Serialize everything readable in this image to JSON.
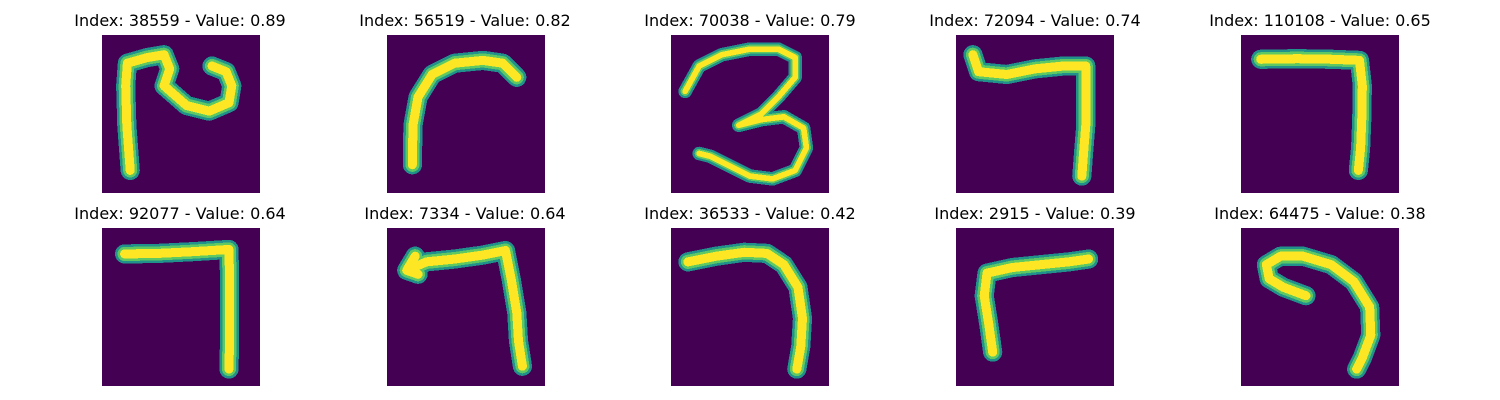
{
  "colors": {
    "background": "#440154",
    "teal": "#21918c",
    "green": "#5ec962",
    "yellow": "#fde725"
  },
  "panels": [
    {
      "title": "Index: 38559 - Value: 0.89",
      "icon": "glyph-curl-hook"
    },
    {
      "title": "Index: 56519 - Value: 0.82",
      "icon": "glyph-arch-left"
    },
    {
      "title": "Index: 70038 - Value: 0.79",
      "icon": "glyph-three"
    },
    {
      "title": "Index: 72094 - Value: 0.74",
      "icon": "glyph-seven-wave"
    },
    {
      "title": "Index: 110108 - Value: 0.65",
      "icon": "glyph-seven-wide"
    },
    {
      "title": "Index: 92077 - Value: 0.64",
      "icon": "glyph-seven-straight"
    },
    {
      "title": "Index: 7334 - Value: 0.64",
      "icon": "glyph-seven-tilted"
    },
    {
      "title": "Index: 36533 - Value: 0.42",
      "icon": "glyph-seven-curved"
    },
    {
      "title": "Index: 2915 - Value: 0.39",
      "icon": "glyph-l-inverted"
    },
    {
      "title": "Index: 64475 - Value: 0.38",
      "icon": "glyph-hook-curl"
    }
  ]
}
